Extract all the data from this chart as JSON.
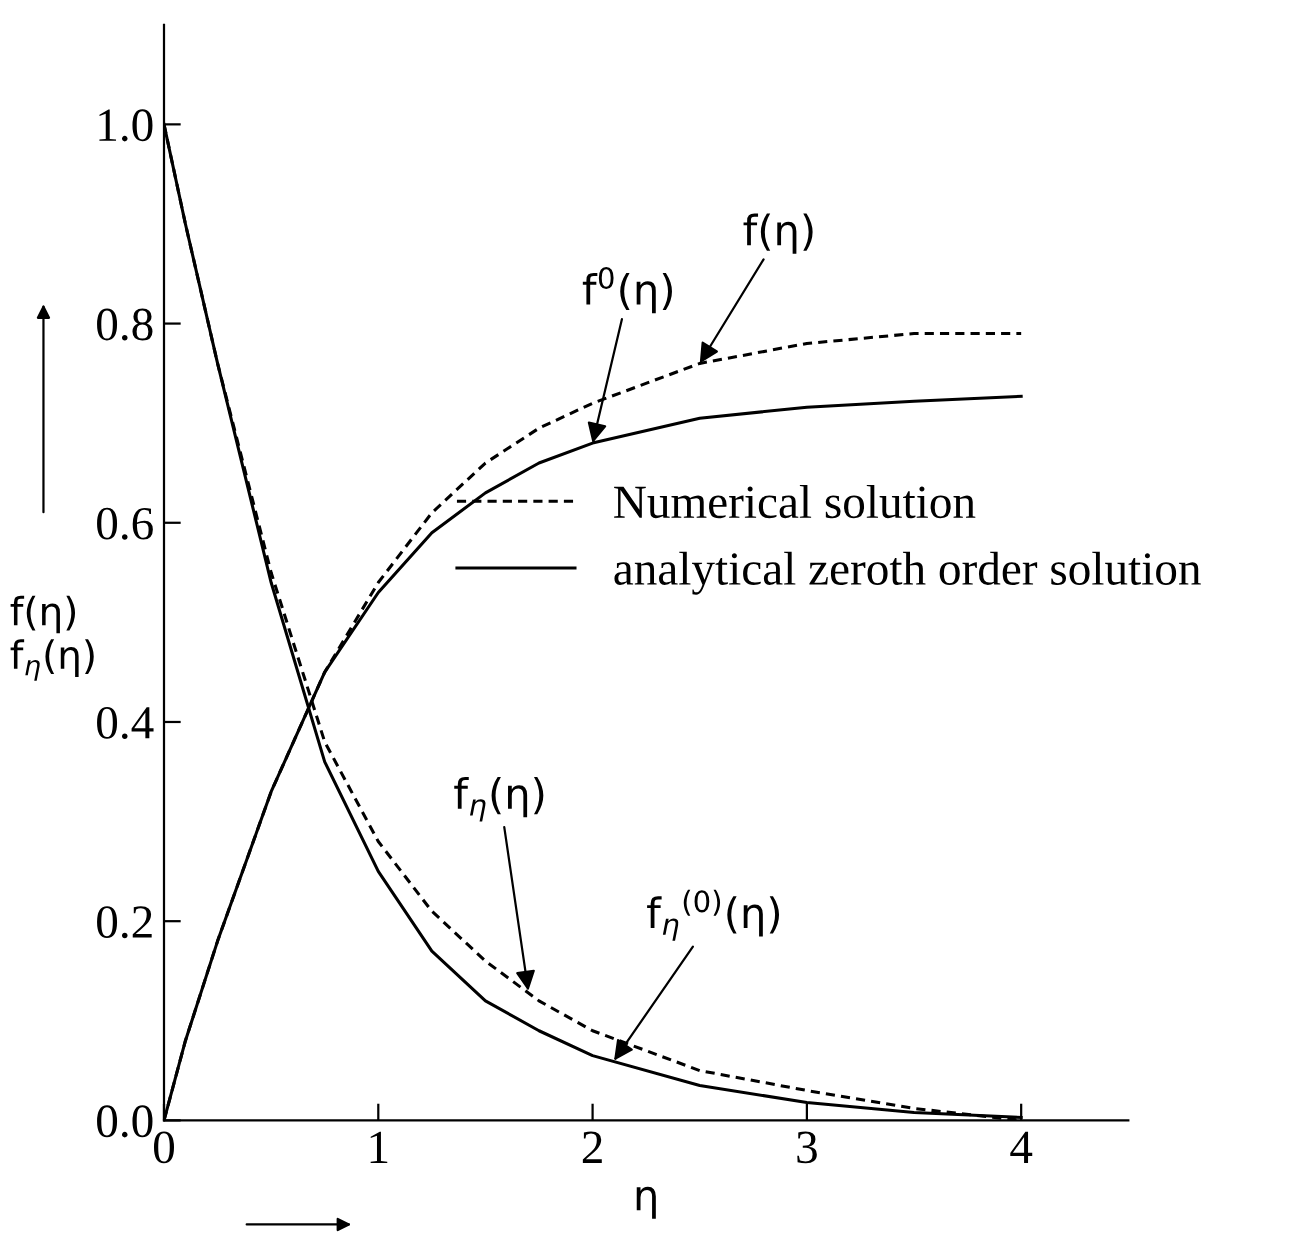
{
  "chart_data": {
    "type": "line",
    "xlabel": "η",
    "ylabel": "f(η)\nf$_{η}$(η)",
    "xlim": [
      0,
      4.5
    ],
    "ylim": [
      0,
      1.1
    ],
    "xticks": [
      0,
      1,
      2,
      3,
      4
    ],
    "yticks": [
      {
        "value": 0,
        "label": "0.0"
      },
      {
        "value": 0.2,
        "label": "0.2"
      },
      {
        "value": 0.4,
        "label": "0.4"
      },
      {
        "value": 0.6,
        "label": "0.6"
      },
      {
        "value": 0.8,
        "label": "0.8"
      },
      {
        "value": 1,
        "label": "1.0"
      }
    ],
    "grid": false,
    "legend": "right",
    "marker": "none",
    "series": [
      {
        "name": "Numerical solution",
        "color": "#000000",
        "line_style": "dashed",
        "x": [
          0,
          0.1,
          0.25,
          0.5,
          0.75,
          1,
          1.25,
          1.5,
          1.75,
          2,
          2.5,
          3,
          3.5,
          4
        ],
        "values": [
          0,
          0.08,
          0.18,
          0.33,
          0.45,
          0.54,
          0.61,
          0.66,
          0.695,
          0.72,
          0.76,
          0.78,
          0.79,
          0.79
        ]
      },
      {
        "name": "analytical zeroth order solution",
        "color": "#000000",
        "line_style": "solid",
        "x": [
          0,
          0.1,
          0.25,
          0.5,
          0.75,
          1,
          1.25,
          1.5,
          1.75,
          2,
          2.5,
          3,
          3.5,
          4
        ],
        "values": [
          0,
          0.08,
          0.18,
          0.33,
          0.45,
          0.53,
          0.59,
          0.63,
          0.66,
          0.68,
          0.705,
          0.716,
          0.722,
          0.727
        ]
      },
      {
        "color": "#000000",
        "line_style": "dashed",
        "x": [
          0,
          0.1,
          0.25,
          0.5,
          0.75,
          1,
          1.25,
          1.5,
          1.75,
          2,
          2.5,
          3,
          3.5,
          4
        ],
        "values": [
          1.0,
          0.9,
          0.76,
          0.55,
          0.38,
          0.28,
          0.21,
          0.16,
          0.12,
          0.09,
          0.05,
          0.03,
          0.012,
          0.0
        ]
      },
      {
        "color": "#000000",
        "line_style": "solid",
        "x": [
          0,
          0.1,
          0.25,
          0.5,
          0.75,
          1,
          1.25,
          1.5,
          1.75,
          2,
          2.5,
          3,
          3.5,
          4
        ],
        "values": [
          1.0,
          0.9,
          0.76,
          0.54,
          0.36,
          0.25,
          0.17,
          0.12,
          0.09,
          0.065,
          0.035,
          0.018,
          0.008,
          0.003
        ]
      }
    ],
    "annotations": [
      {
        "text": "f$^{0}$(η)",
        "x": 2.0,
        "y": 0.68
      },
      {
        "text": "f(η)",
        "x": 2.5,
        "y": 0.76
      },
      {
        "text": "f$_{η}$(η)",
        "x": 1.7,
        "y": 0.13
      },
      {
        "text": "f$_{η}$$^{(0)}$(η)",
        "x": 2.1,
        "y": 0.06
      }
    ]
  }
}
